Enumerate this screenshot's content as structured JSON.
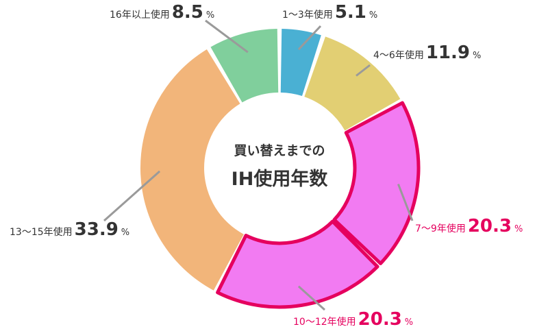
{
  "chart_data": {
    "type": "pie",
    "center_title_line1": "買い替えまでの",
    "center_title_line2": "IH使用年数",
    "unit": "%",
    "categories": [
      "1～3年使用",
      "4～6年使用",
      "7～9年使用",
      "10～12年使用",
      "13～15年使用",
      "16年以上使用"
    ],
    "values": [
      5.1,
      11.9,
      20.3,
      20.3,
      33.9,
      8.5
    ],
    "labels": [
      "5.1",
      "11.9",
      "20.3",
      "20.3",
      "33.9",
      "8.5"
    ],
    "highlighted": [
      false,
      false,
      true,
      true,
      false,
      false
    ],
    "colors": [
      "#4ab0d3",
      "#e2cf73",
      "#f27bf2",
      "#f27bf2",
      "#f2b57a",
      "#80cf9c"
    ],
    "highlight_stroke": "#e5005e",
    "label_text_color": "#333333",
    "highlight_text_color": "#e5005e"
  }
}
